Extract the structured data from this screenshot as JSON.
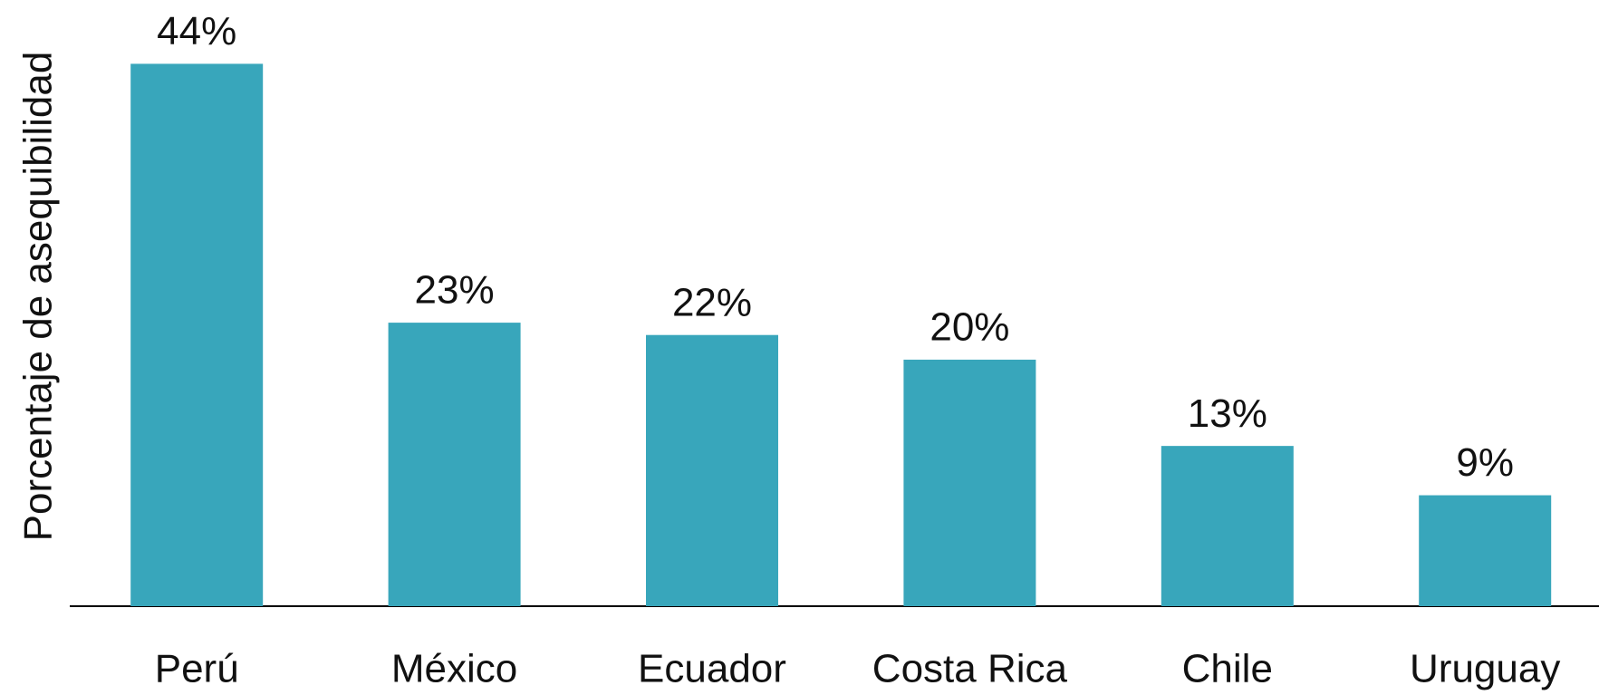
{
  "chart_data": {
    "type": "bar",
    "y_label": "Porcentaje de asequibilidad",
    "categories": [
      "Perú",
      "México",
      "Ecuador",
      "Costa Rica",
      "Chile",
      "Uruguay"
    ],
    "values": [
      44,
      23,
      22,
      20,
      13,
      9
    ],
    "value_labels": [
      "44%",
      "23%",
      "22%",
      "20%",
      "13%",
      "9%"
    ],
    "color": "#38a6bb",
    "ylim": [
      0,
      48
    ]
  }
}
